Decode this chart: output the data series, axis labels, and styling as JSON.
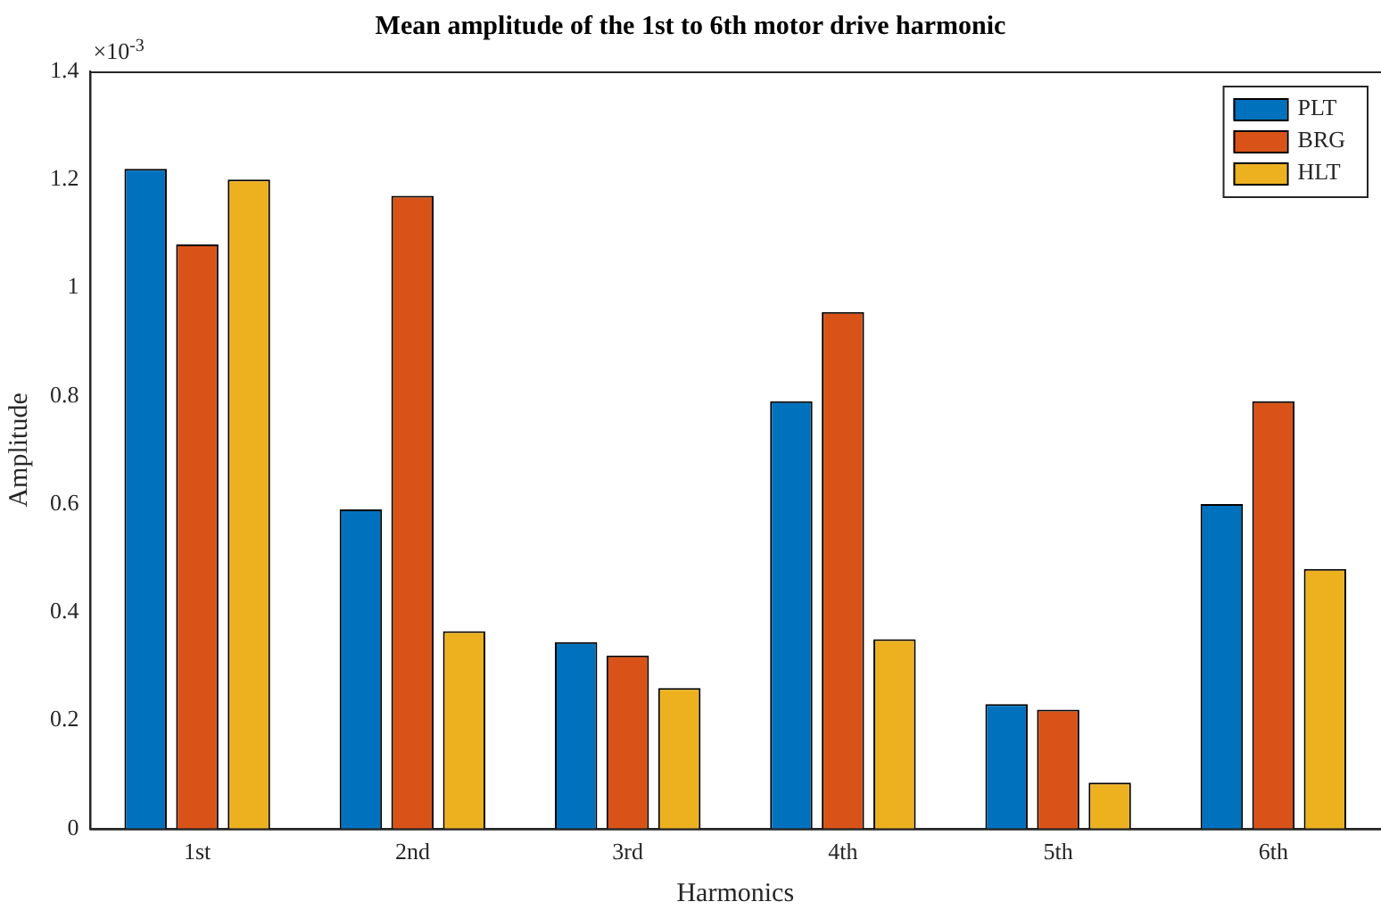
{
  "chart_data": {
    "type": "bar",
    "title": "Mean amplitude of the 1st to 6th motor drive harmonic",
    "xlabel": "Harmonics",
    "ylabel": "Amplitude",
    "categories": [
      "1st",
      "2nd",
      "3rd",
      "4th",
      "5th",
      "6th"
    ],
    "series": [
      {
        "name": "PLT",
        "color": "#0072bd",
        "values": [
          1.22,
          0.59,
          0.345,
          0.79,
          0.23,
          0.6
        ]
      },
      {
        "name": "BRG",
        "color": "#d95319",
        "values": [
          1.08,
          1.17,
          0.32,
          0.955,
          0.22,
          0.79
        ]
      },
      {
        "name": "HLT",
        "color": "#edb120",
        "values": [
          1.2,
          0.365,
          0.26,
          0.35,
          0.085,
          0.48
        ]
      }
    ],
    "ylim": [
      0,
      1.4
    ],
    "yticks": [
      0,
      0.2,
      0.4,
      0.6,
      0.8,
      1,
      1.2,
      1.4
    ],
    "annotations": [
      "×10$^{-3}$"
    ],
    "legend": "top right",
    "grid": false
  }
}
